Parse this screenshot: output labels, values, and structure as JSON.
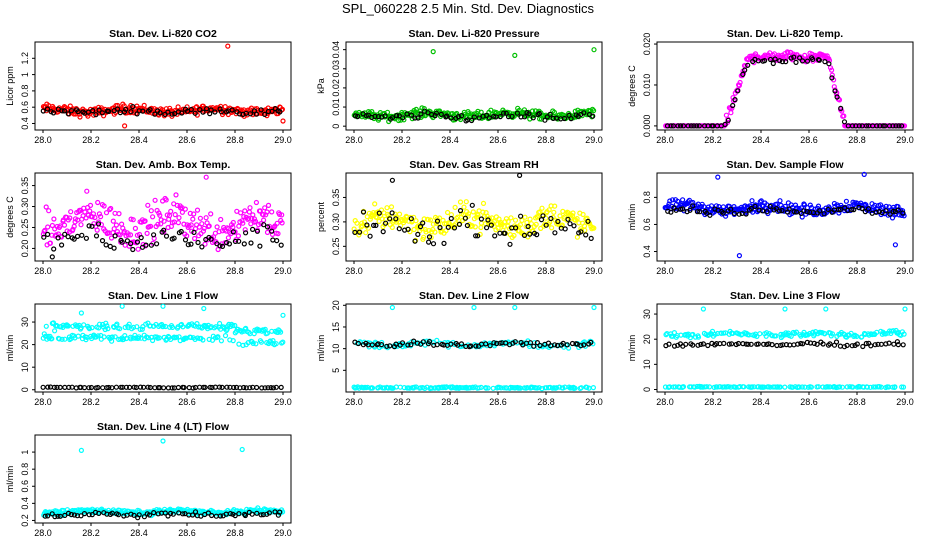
{
  "figure_title": "SPL_060228  2.5 Min. Std. Dev. Diagnostics",
  "chart_data": [
    {
      "type": "scatter",
      "title": "Stan. Dev. Li-820 CO2",
      "ylabel": "Licor ppm",
      "xlim": [
        28.0,
        29.0
      ],
      "ylim": [
        0.32,
        1.4
      ],
      "xticks": [
        "28.0",
        "28.2",
        "28.4",
        "28.6",
        "28.8",
        "29.0"
      ],
      "yticks": [
        0.4,
        0.6,
        0.8,
        1.0,
        1.2
      ],
      "series": [
        {
          "color": "#ff0000",
          "base": 0.56,
          "noise": 0.06,
          "outliers": [
            [
              28.34,
              0.37
            ],
            [
              28.77,
              1.35
            ],
            [
              29.0,
              0.43
            ]
          ]
        },
        {
          "color": "#000000",
          "base": 0.55,
          "noise": 0.04,
          "outliers": []
        }
      ]
    },
    {
      "type": "scatter",
      "title": "Stan. Dev. Li-820 Pressure",
      "ylabel": "kPa",
      "xlim": [
        28.0,
        29.0
      ],
      "ylim": [
        -0.002,
        0.044
      ],
      "xticks": [
        "28.0",
        "28.2",
        "28.4",
        "28.6",
        "28.8",
        "29.0"
      ],
      "yticks": [
        0.0,
        0.01,
        0.02,
        0.03,
        0.04
      ],
      "series": [
        {
          "color": "#00c000",
          "base": 0.006,
          "noise": 0.0025,
          "outliers": [
            [
              28.33,
              0.039
            ],
            [
              28.67,
              0.037
            ],
            [
              29.0,
              0.04
            ]
          ]
        },
        {
          "color": "#000000",
          "base": 0.005,
          "noise": 0.002,
          "outliers": []
        }
      ]
    },
    {
      "type": "scatter",
      "title": "Stan. Dev. Li-820 Temp.",
      "ylabel": "degrees C",
      "xlim": [
        28.0,
        29.0
      ],
      "ylim": [
        -0.001,
        0.0205
      ],
      "xticks": [
        "28.0",
        "28.2",
        "28.4",
        "28.6",
        "28.8",
        "29.0"
      ],
      "yticks": [
        0.0,
        0.01,
        0.02
      ],
      "ytick_labels": [
        "0.000",
        "0.010",
        "0.020"
      ],
      "series": [
        {
          "color": "#ff00ff",
          "base": 0.017,
          "noise": 0.0015,
          "shape": "plateau",
          "outliers": []
        },
        {
          "color": "#000000",
          "base": 0.016,
          "noise": 0.001,
          "shape": "plateau",
          "outliers": []
        }
      ]
    },
    {
      "type": "scatter",
      "title": "Stan. Dev. Amb. Box Temp.",
      "ylabel": "degrees C",
      "xlim": [
        28.0,
        29.0
      ],
      "ylim": [
        0.17,
        0.38
      ],
      "xticks": [
        "28.0",
        "28.2",
        "28.4",
        "28.6",
        "28.8",
        "29.0"
      ],
      "yticks": [
        0.2,
        0.25,
        0.3,
        0.35
      ],
      "ytick_labels": [
        "0.20",
        "0.25",
        "0.30",
        "0.35"
      ],
      "series": [
        {
          "color": "#ff00ff",
          "base": 0.26,
          "noise": 0.05,
          "outliers": [
            [
              28.68,
              0.37
            ]
          ]
        },
        {
          "color": "#000000",
          "base": 0.22,
          "noise": 0.03,
          "outliers": []
        }
      ]
    },
    {
      "type": "scatter",
      "title": "Stan. Dev. Gas Stream RH",
      "ylabel": "percent",
      "xlim": [
        28.0,
        29.0
      ],
      "ylim": [
        0.22,
        0.4
      ],
      "xticks": [
        "28.0",
        "28.2",
        "28.4",
        "28.6",
        "28.8",
        "29.0"
      ],
      "yticks": [
        0.25,
        0.3,
        0.35
      ],
      "ytick_labels": [
        "0.25",
        "0.30",
        "0.35"
      ],
      "series": [
        {
          "color": "#ffff00",
          "base": 0.3,
          "noise": 0.03,
          "outliers": []
        },
        {
          "color": "#000000",
          "base": 0.29,
          "noise": 0.03,
          "outliers": [
            [
              28.16,
              0.385
            ],
            [
              28.69,
              0.395
            ]
          ]
        }
      ]
    },
    {
      "type": "scatter",
      "title": "Stan. Dev. Sample Flow",
      "ylabel": "ml/min",
      "xlim": [
        28.0,
        29.0
      ],
      "ylim": [
        0.33,
        0.98
      ],
      "xticks": [
        "28.0",
        "28.2",
        "28.4",
        "28.6",
        "28.8",
        "29.0"
      ],
      "yticks": [
        0.4,
        0.6,
        0.8
      ],
      "series": [
        {
          "color": "#0000ff",
          "base": 0.72,
          "noise": 0.05,
          "outliers": [
            [
              28.22,
              0.95
            ],
            [
              28.31,
              0.37
            ],
            [
              28.83,
              0.97
            ],
            [
              28.96,
              0.45
            ]
          ]
        },
        {
          "color": "#000000",
          "base": 0.7,
          "noise": 0.03,
          "outliers": []
        }
      ]
    },
    {
      "type": "scatter",
      "title": "Stan. Dev. Line 1 Flow",
      "ylabel": "ml/min",
      "xlim": [
        28.0,
        29.0
      ],
      "ylim": [
        -1,
        38
      ],
      "xticks": [
        "28.0",
        "28.2",
        "28.4",
        "28.6",
        "28.8",
        "29.0"
      ],
      "yticks": [
        0,
        10,
        20,
        30
      ],
      "series": [
        {
          "color": "#00ffff",
          "base": 28,
          "noise": 1.5,
          "shape": "bands",
          "outliers": [
            [
              28.16,
              34
            ],
            [
              28.33,
              37
            ],
            [
              28.5,
              37
            ],
            [
              28.67,
              36
            ],
            [
              29.0,
              33
            ]
          ]
        },
        {
          "color": "#000000",
          "base": 1,
          "noise": 0.2,
          "outliers": []
        }
      ]
    },
    {
      "type": "scatter",
      "title": "Stan. Dev. Line 2 Flow",
      "ylabel": "ml/min",
      "xlim": [
        28.0,
        29.0
      ],
      "ylim": [
        0,
        20.3
      ],
      "xticks": [
        "28.0",
        "28.2",
        "28.4",
        "28.6",
        "28.8",
        "29.0"
      ],
      "yticks": [
        5,
        10,
        15,
        20
      ],
      "series": [
        {
          "color": "#00ffff",
          "base": 11,
          "noise": 0.8,
          "shape": "twolevel",
          "outliers": [
            [
              28.16,
              19.5
            ],
            [
              28.5,
              19.5
            ],
            [
              28.67,
              19.5
            ],
            [
              29.0,
              19.5
            ]
          ]
        },
        {
          "color": "#000000",
          "base": 11,
          "noise": 0.6,
          "outliers": []
        }
      ]
    },
    {
      "type": "scatter",
      "title": "Stan. Dev. Line 3 Flow",
      "ylabel": "ml/min",
      "xlim": [
        28.0,
        29.0
      ],
      "ylim": [
        -1,
        34
      ],
      "xticks": [
        "28.0",
        "28.2",
        "28.4",
        "28.6",
        "28.8",
        "29.0"
      ],
      "yticks": [
        0,
        10,
        20,
        30
      ],
      "series": [
        {
          "color": "#00ffff",
          "base": 22,
          "noise": 1.2,
          "shape": "twolevel",
          "outliers": [
            [
              28.16,
              32
            ],
            [
              28.5,
              32
            ],
            [
              28.67,
              32
            ],
            [
              29.0,
              32
            ]
          ]
        },
        {
          "color": "#000000",
          "base": 18,
          "noise": 0.8,
          "outliers": []
        }
      ]
    },
    {
      "type": "scatter",
      "title": "Stan. Dev. Line 4 (LT) Flow",
      "ylabel": "ml/min",
      "xlim": [
        28.0,
        29.0
      ],
      "ylim": [
        0.17,
        1.2
      ],
      "xticks": [
        "28.0",
        "28.2",
        "28.4",
        "28.6",
        "28.8",
        "29.0"
      ],
      "yticks": [
        0.2,
        0.4,
        0.6,
        0.8,
        1.0
      ],
      "series": [
        {
          "color": "#00ffff",
          "base": 0.3,
          "noise": 0.03,
          "outliers": [
            [
              28.16,
              1.02
            ],
            [
              28.5,
              1.13
            ],
            [
              28.83,
              1.03
            ]
          ]
        },
        {
          "color": "#000000",
          "base": 0.27,
          "noise": 0.03,
          "outliers": []
        }
      ]
    }
  ]
}
